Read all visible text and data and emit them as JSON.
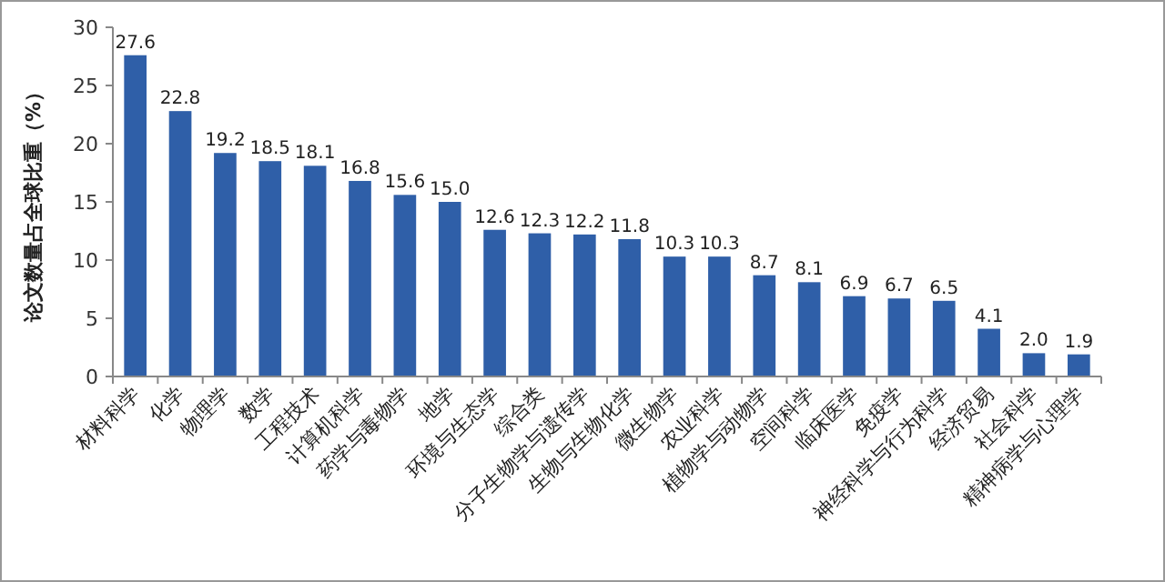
{
  "chart_data": {
    "type": "bar",
    "ylabel": "论文数量占全球比重（%）",
    "categories": [
      "材料科学",
      "化学",
      "物理学",
      "数学",
      "工程技术",
      "计算机科学",
      "药学与毒物学",
      "地学",
      "环境与生态学",
      "综合类",
      "分子生物学与遗传学",
      "生物与生物化学",
      "微生物学",
      "农业科学",
      "植物学与动物学",
      "空间科学",
      "临床医学",
      "免疫学",
      "神经科学与行为科学",
      "经济贸易",
      "社会科学",
      "精神病学与心理学"
    ],
    "values": [
      27.6,
      22.8,
      19.2,
      18.5,
      18.1,
      16.8,
      15.6,
      15.0,
      12.6,
      12.3,
      12.2,
      11.8,
      10.3,
      10.3,
      8.7,
      8.1,
      6.9,
      6.7,
      6.5,
      4.1,
      2.0,
      1.9
    ],
    "value_labels": [
      "27.6",
      "22.8",
      "19.2",
      "18.5",
      "18.1",
      "16.8",
      "15.6",
      "15.0",
      "12.6",
      "12.3",
      "12.2",
      "11.8",
      "10.3",
      "10.3",
      "8.7",
      "8.1",
      "6.9",
      "6.7",
      "6.5",
      "4.1",
      "2.0",
      "1.9"
    ],
    "color": "#2f5fa8",
    "ylim": [
      0,
      30
    ],
    "yticks": [
      0,
      5,
      10,
      15,
      20,
      25,
      30
    ],
    "grid": false
  }
}
